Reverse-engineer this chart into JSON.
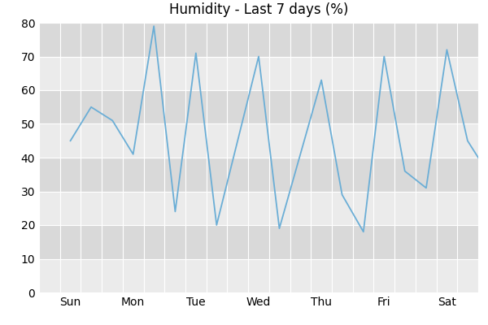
{
  "title": "Humidity - Last 7 days (%)",
  "days": [
    "Sun",
    "Mon",
    "Tue",
    "Wed",
    "Thu",
    "Fri",
    "Sat"
  ],
  "x_raw": [
    0,
    0.33,
    0.67,
    1.0,
    1.33,
    1.67,
    2.0,
    2.33,
    3.0,
    3.33,
    4.0,
    4.33,
    4.67,
    5.0,
    5.33,
    5.67,
    6.0,
    6.33,
    6.67
  ],
  "y_raw": [
    45,
    55,
    51,
    41,
    79,
    24,
    71,
    20,
    70,
    19,
    63,
    29,
    18,
    70,
    36,
    31,
    72,
    45,
    35
  ],
  "line_color": "#6baed6",
  "fig_background": "#ffffff",
  "plot_background": "#ffffff",
  "band_light": "#ebebeb",
  "band_dark": "#d9d9d9",
  "grid_color": "#ffffff",
  "ylim": [
    0,
    80
  ],
  "yticks": [
    0,
    10,
    20,
    30,
    40,
    50,
    60,
    70,
    80
  ],
  "title_fontsize": 12,
  "tick_fontsize": 10,
  "line_width": 1.3,
  "xlim_left": -0.5,
  "xlim_right": 6.5
}
